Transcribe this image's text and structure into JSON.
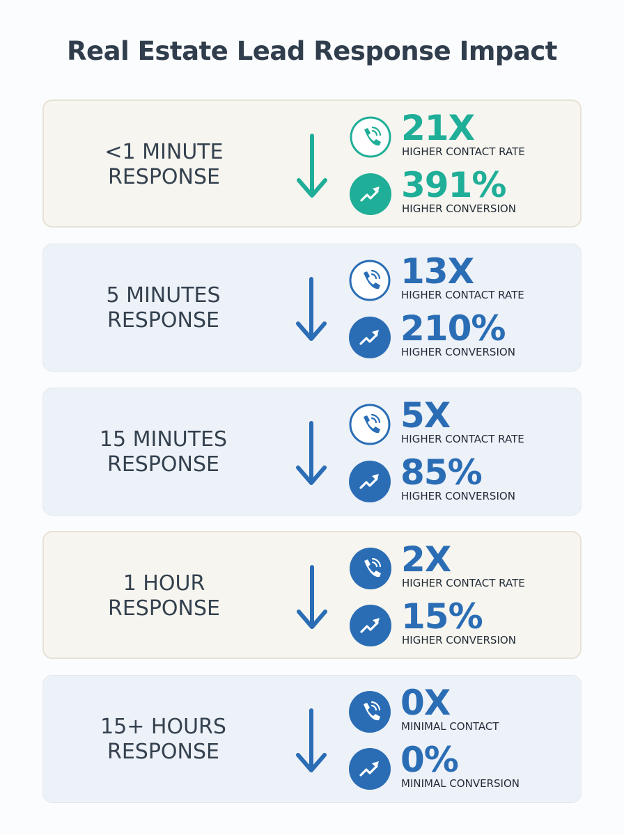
{
  "title": "Real Estate Lead Response Impact",
  "rows": [
    {
      "label": [
        "<1 MINUTE",
        "RESPONSE"
      ],
      "stats": [
        {
          "value": "21X",
          "caption": "HIGHER CONTACT RATE"
        },
        {
          "value": "391%",
          "caption": "HIGHER CONVERSION"
        }
      ]
    },
    {
      "label": [
        "5 MINUTES",
        "RESPONSE"
      ],
      "stats": [
        {
          "value": "13X",
          "caption": "HIGHER CONTACT RATE"
        },
        {
          "value": "210%",
          "caption": "HIGHER CONVERSION"
        }
      ]
    },
    {
      "label": [
        "15 MINUTES",
        "RESPONSE"
      ],
      "stats": [
        {
          "value": "5X",
          "caption": "HIGHER CONTACT RATE"
        },
        {
          "value": "85%",
          "caption": "HIGHER CONVERSION"
        }
      ]
    },
    {
      "label": [
        "1 HOUR",
        "RESPONSE"
      ],
      "stats": [
        {
          "value": "2X",
          "caption": "HIGHER CONTACT RATE"
        },
        {
          "value": "15%",
          "caption": "HIGHER CONVERSION"
        }
      ]
    },
    {
      "label": [
        "15+ HOURS",
        "RESPONSE"
      ],
      "stats": [
        {
          "value": "0X",
          "caption": "MINIMAL CONTACT"
        },
        {
          "value": "0%",
          "caption": "MINIMAL CONVERSION"
        }
      ]
    }
  ]
}
